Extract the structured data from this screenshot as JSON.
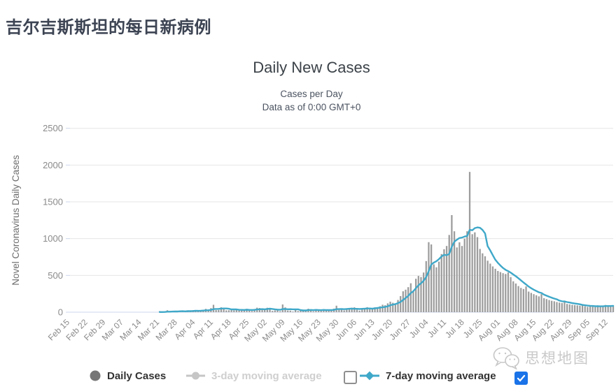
{
  "page": {
    "title": "吉尔吉斯斯坦的每日新病例"
  },
  "watermark": {
    "label": "思想地图",
    "icon": "wechat-icon"
  },
  "colors": {
    "bar": "#9d9d9d",
    "ma7_line": "#3fa8c9",
    "grid": "#e6e6e6",
    "axis_line": "#ccd6eb",
    "axis_label": "#8a8a8a",
    "y_axis_title": "#6e6e6e",
    "legend_daily_marker": "#767676",
    "legend_disabled": "#c6c6c6",
    "checkbox_checked_fill": "#1a73e8",
    "title_text": "#3b4248"
  },
  "legend": {
    "daily": {
      "label": "Daily Cases",
      "color": "#767676",
      "enabled": true
    },
    "ma3": {
      "label": "3-day moving average",
      "color": "#c6c6c6",
      "enabled": false
    },
    "ma7": {
      "label": "7-day moving average",
      "color": "#3fa8c9",
      "enabled": true
    },
    "checkbox_before_ma7_checked": false,
    "checkbox_far_right_checked": true
  },
  "chart_data": {
    "type": "bar",
    "title": "Daily New Cases",
    "subtitle": "Cases per Day",
    "subtitle2": "Data as of 0:00 GMT+0",
    "xlabel": "",
    "ylabel": "Novel Coronavirus Daily Cases",
    "ylim": [
      0,
      2500
    ],
    "yticks": [
      0,
      500,
      1000,
      1500,
      2000,
      2500
    ],
    "grid": true,
    "legend_position": "bottom",
    "x": {
      "start": "Feb 15",
      "end": "Sep 14",
      "unit": "day",
      "tick_interval_days": 7,
      "tick_labels": [
        "Feb 15",
        "Feb 22",
        "Feb 29",
        "Mar 07",
        "Mar 14",
        "Mar 21",
        "Mar 28",
        "Apr 04",
        "Apr 11",
        "Apr 18",
        "Apr 25",
        "May 02",
        "May 09",
        "May 16",
        "May 23",
        "May 30",
        "Jun 06",
        "Jun 13",
        "Jun 20",
        "Jun 27",
        "Jul 04",
        "Jul 11",
        "Jul 18",
        "Jul 25",
        "Aug 01",
        "Aug 08",
        "Aug 15",
        "Aug 22",
        "Aug 29",
        "Sep 05",
        "Sep 12"
      ]
    },
    "series": [
      {
        "name": "Daily Cases",
        "type": "bar",
        "color": "#9d9d9d",
        "values": [
          0,
          0,
          0,
          0,
          0,
          0,
          0,
          0,
          0,
          0,
          0,
          0,
          0,
          0,
          0,
          0,
          0,
          0,
          0,
          0,
          0,
          0,
          0,
          0,
          0,
          0,
          0,
          0,
          0,
          0,
          0,
          0,
          0,
          0,
          0,
          14,
          2,
          2,
          26,
          2,
          14,
          14,
          4,
          23,
          10,
          13,
          24,
          13,
          27,
          22,
          19,
          18,
          33,
          45,
          24,
          55,
          100,
          28,
          30,
          66,
          49,
          25,
          26,
          42,
          25,
          36,
          26,
          39,
          21,
          46,
          29,
          17,
          43,
          61,
          57,
          38,
          29,
          60,
          47,
          17,
          24,
          34,
          13,
          105,
          65,
          23,
          21,
          9,
          32,
          15,
          35,
          34,
          21,
          47,
          31,
          13,
          36,
          22,
          24,
          41,
          36,
          25,
          23,
          48,
          88,
          32,
          44,
          25,
          48,
          42,
          61,
          66,
          33,
          21,
          49,
          57,
          68,
          60,
          46,
          66,
          52,
          80,
          101,
          94,
          120,
          143,
          128,
          104,
          166,
          219,
          284,
          306,
          340,
          393,
          290,
          454,
          493,
          478,
          539,
          695,
          952,
          921,
          650,
          610,
          687,
          790,
          856,
          900,
          1050,
          1320,
          1100,
          880,
          950,
          900,
          1000,
          1100,
          1907,
          1060,
          1085,
          1020,
          860,
          800,
          760,
          700,
          660,
          622,
          590,
          560,
          545,
          530,
          519,
          540,
          477,
          420,
          390,
          355,
          330,
          315,
          350,
          280,
          262,
          245,
          230,
          215,
          246,
          190,
          178,
          165,
          155,
          148,
          138,
          130,
          124,
          158,
          112,
          106,
          100,
          96,
          92,
          88,
          95,
          80,
          72,
          85,
          78,
          70,
          92,
          84,
          76,
          98,
          88,
          80,
          90
        ]
      },
      {
        "name": "3-day moving average",
        "type": "line",
        "color": "#c6c6c6",
        "visible": false
      },
      {
        "name": "7-day moving average",
        "type": "line",
        "color": "#3fa8c9",
        "visible": true,
        "window": 7,
        "derived_from": "Daily Cases"
      }
    ]
  }
}
